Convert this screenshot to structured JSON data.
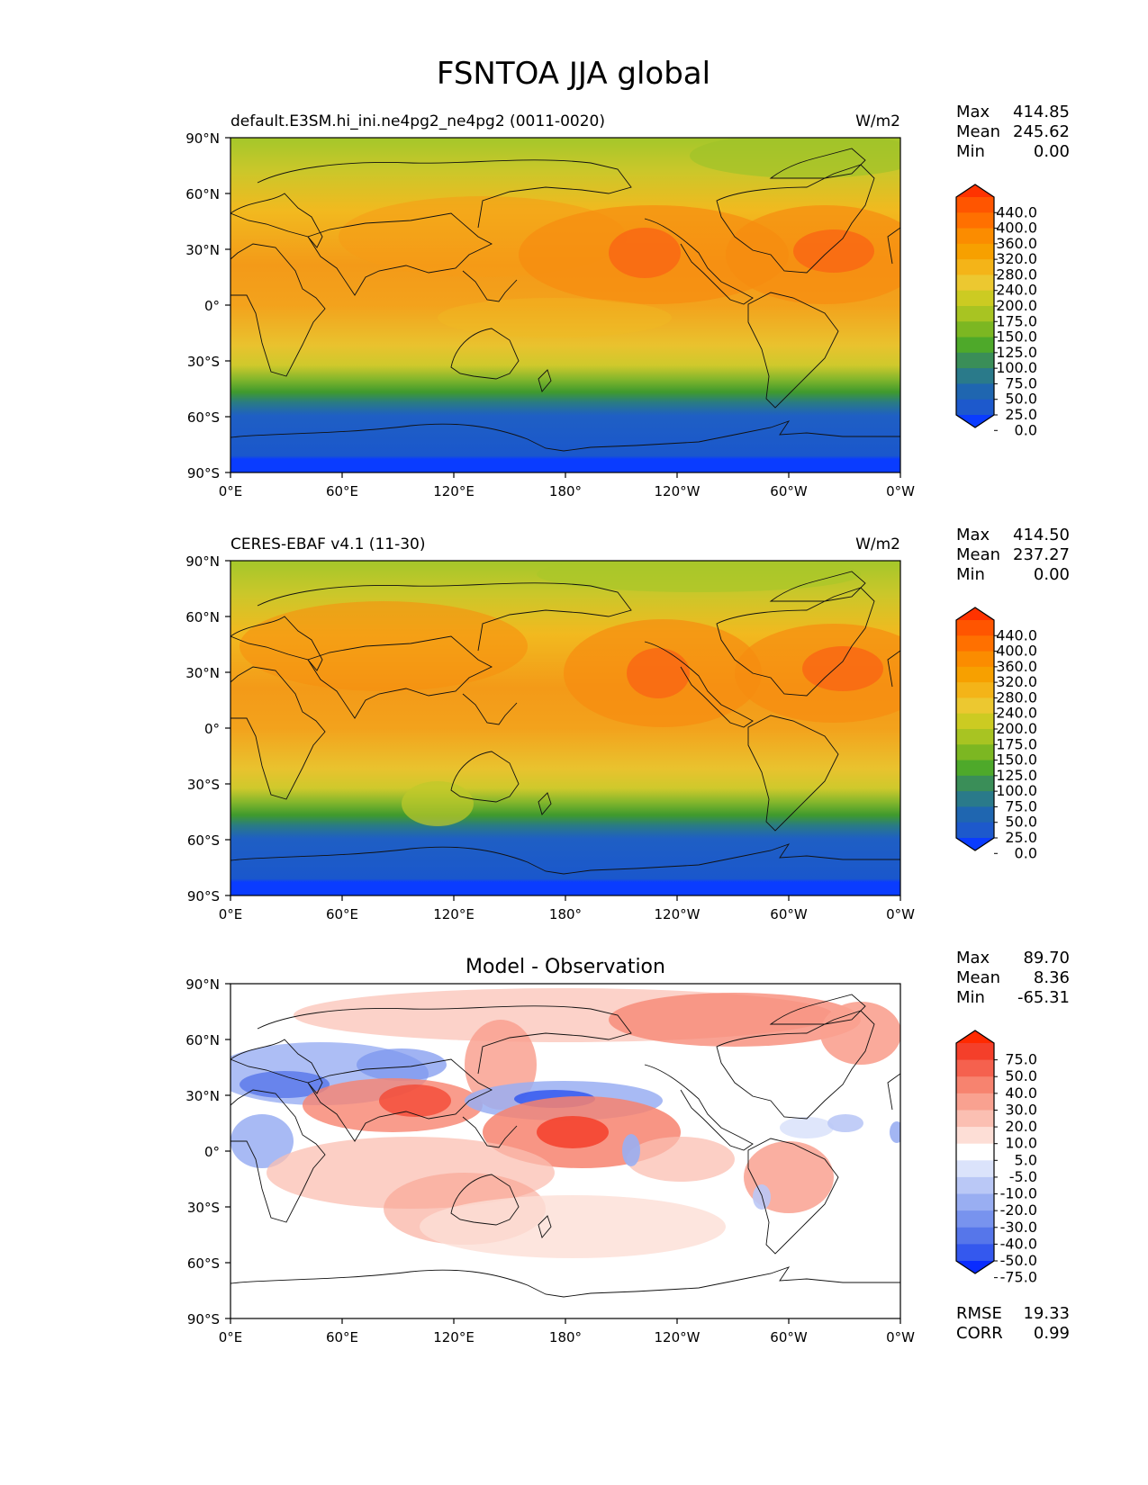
{
  "title": "FSNTOA JJA global",
  "axes": {
    "lat_ticks": [
      "90°N",
      "60°N",
      "30°N",
      "0°",
      "30°S",
      "60°S",
      "90°S"
    ],
    "lon_ticks": [
      "0°E",
      "60°E",
      "120°E",
      "180°",
      "120°W",
      "60°W",
      "0°W"
    ],
    "lat_range": [
      -90,
      90
    ],
    "lon_range": [
      0,
      360
    ],
    "projection": "plate carree",
    "coastlines": true
  },
  "panels": [
    {
      "id": "model",
      "left_label": "default.E3SM.hi_ini.ne4pg2_ne4pg2 (0011-0020)",
      "right_label": "W/m2",
      "center_label": "",
      "stats": [
        {
          "label": "Max",
          "value": "414.85"
        },
        {
          "label": "Mean",
          "value": "245.62"
        },
        {
          "label": "Min",
          "value": "0.00"
        }
      ],
      "extra_stats": []
    },
    {
      "id": "obs",
      "left_label": "CERES-EBAF v4.1 (11-30)",
      "right_label": "W/m2",
      "center_label": "",
      "stats": [
        {
          "label": "Max",
          "value": "414.50"
        },
        {
          "label": "Mean",
          "value": "237.27"
        },
        {
          "label": "Min",
          "value": "0.00"
        }
      ],
      "extra_stats": []
    },
    {
      "id": "diff",
      "left_label": "",
      "right_label": "",
      "center_label": "Model - Observation",
      "stats": [
        {
          "label": "Max",
          "value": "89.70"
        },
        {
          "label": "Mean",
          "value": "8.36"
        },
        {
          "label": "Min",
          "value": "-65.31"
        }
      ],
      "extra_stats": [
        {
          "label": "RMSE",
          "value": "19.33"
        },
        {
          "label": "CORR",
          "value": "0.99"
        }
      ]
    }
  ],
  "colorbars": {
    "main": {
      "levels": [
        "440.0",
        "400.0",
        "360.0",
        "320.0",
        "280.0",
        "240.0",
        "200.0",
        "175.0",
        "150.0",
        "125.0",
        "100.0",
        "75.0",
        "50.0",
        "25.0",
        "0.0"
      ],
      "colors": [
        "#ff3300",
        "#ff5500",
        "#ff7000",
        "#fb8c00",
        "#f7a000",
        "#f4b418",
        "#ecc830",
        "#cccb22",
        "#a8c422",
        "#7cb722",
        "#4ea92a",
        "#3a8e58",
        "#2a7a8a",
        "#1f66b0",
        "#1d59cc",
        "#0a3cff"
      ]
    },
    "diff": {
      "levels": [
        "75.0",
        "50.0",
        "40.0",
        "30.0",
        "20.0",
        "10.0",
        "5.0",
        "-5.0",
        "-10.0",
        "-20.0",
        "-30.0",
        "-40.0",
        "-50.0",
        "-75.0"
      ],
      "colors": [
        "#ff2a00",
        "#f43f2a",
        "#f5614e",
        "#f7836f",
        "#f9a190",
        "#fbbfb2",
        "#fdded6",
        "#ffffff",
        "#dbe3fb",
        "#bac8f6",
        "#99aef2",
        "#7893ee",
        "#5676ea",
        "#3458ee",
        "#0a2cff"
      ]
    }
  }
}
